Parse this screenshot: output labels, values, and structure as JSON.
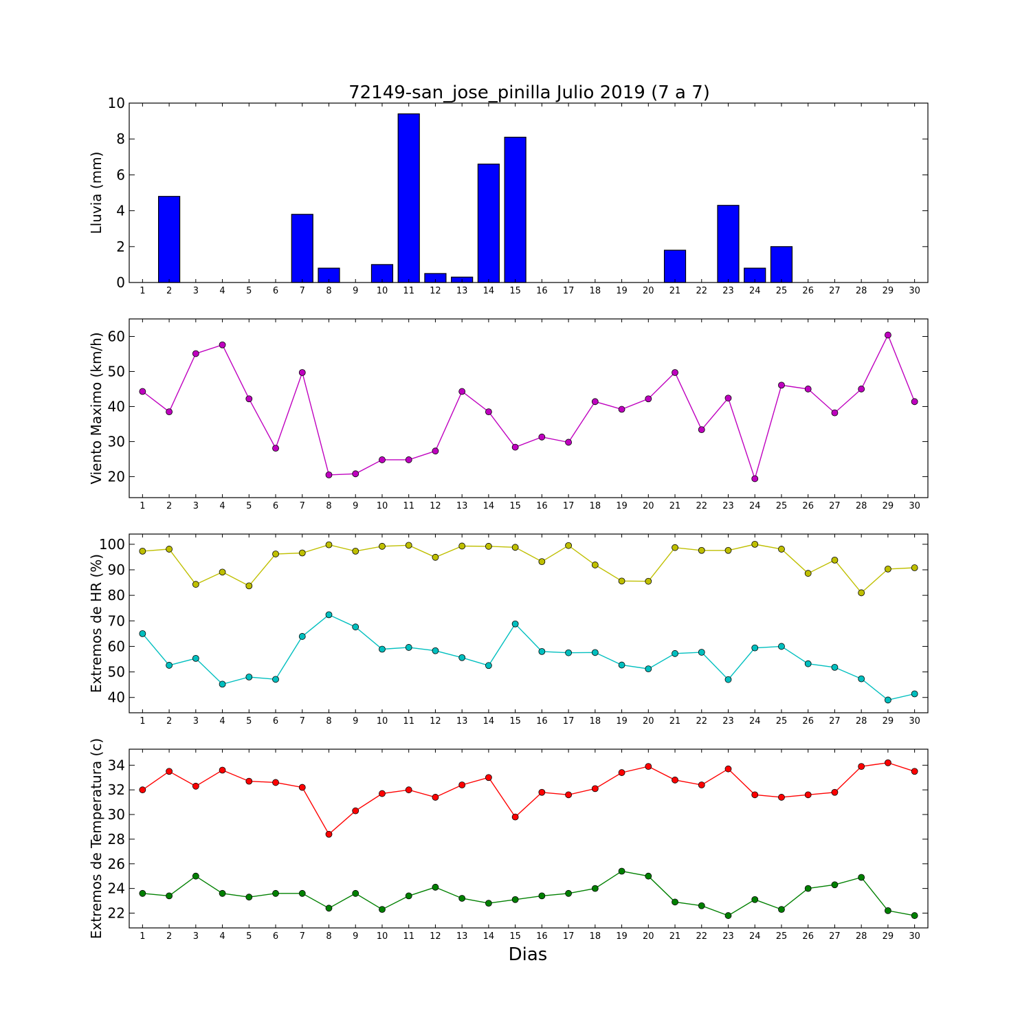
{
  "figure": {
    "title": "72149-san_jose_pinilla Julio 2019  (7 a 7)",
    "xlabel": "Dias"
  },
  "chart_data": [
    {
      "id": "lluvia",
      "type": "bar",
      "ylabel": "Lluvia (mm)",
      "categories": [
        "1",
        "2",
        "3",
        "4",
        "5",
        "6",
        "7",
        "8",
        "9",
        "10",
        "11",
        "12",
        "13",
        "14",
        "15",
        "16",
        "17",
        "18",
        "19",
        "20",
        "21",
        "22",
        "23",
        "24",
        "25",
        "26",
        "27",
        "28",
        "29",
        "30"
      ],
      "values": [
        0,
        4.8,
        0,
        0,
        0,
        0,
        3.8,
        0.8,
        0,
        1.0,
        9.4,
        0.5,
        0.3,
        6.6,
        8.1,
        0,
        0,
        0,
        0,
        0,
        1.8,
        0,
        4.3,
        0.8,
        2.0,
        0,
        0,
        0,
        0,
        0
      ],
      "ylim": [
        0,
        10
      ],
      "yticks": [
        0,
        2,
        4,
        6,
        8,
        10
      ],
      "color": "#0000ff",
      "grid": false
    },
    {
      "id": "viento",
      "type": "line",
      "ylabel": "Viento Maximo (km/h)",
      "categories": [
        "1",
        "2",
        "3",
        "4",
        "5",
        "6",
        "7",
        "8",
        "9",
        "10",
        "11",
        "12",
        "13",
        "14",
        "15",
        "16",
        "17",
        "18",
        "19",
        "20",
        "21",
        "22",
        "23",
        "24",
        "25",
        "26",
        "27",
        "28",
        "29",
        "30"
      ],
      "series": [
        {
          "color": "#bf00bf",
          "values": [
            44.3,
            38.5,
            55.1,
            57.6,
            42.2,
            28.1,
            49.7,
            20.5,
            20.8,
            24.8,
            24.8,
            27.3,
            44.3,
            38.5,
            28.4,
            31.3,
            29.8,
            41.4,
            39.2,
            42.2,
            49.7,
            33.4,
            42.4,
            19.4,
            46.1,
            45.0,
            38.2,
            45.0,
            60.4,
            41.4
          ]
        }
      ],
      "ylim": [
        14,
        65
      ],
      "yticks": [
        20,
        30,
        40,
        50,
        60
      ],
      "grid": false
    },
    {
      "id": "hr",
      "type": "line",
      "ylabel": "Extremos de HR (%)",
      "categories": [
        "1",
        "2",
        "3",
        "4",
        "5",
        "6",
        "7",
        "8",
        "9",
        "10",
        "11",
        "12",
        "13",
        "14",
        "15",
        "16",
        "17",
        "18",
        "19",
        "20",
        "21",
        "22",
        "23",
        "24",
        "25",
        "26",
        "27",
        "28",
        "29",
        "30"
      ],
      "series": [
        {
          "color": "#bfbf00",
          "values": [
            97.3,
            98.1,
            84.3,
            89.1,
            83.7,
            96.2,
            96.6,
            99.8,
            97.3,
            99.2,
            99.6,
            94.9,
            99.3,
            99.2,
            98.8,
            93.2,
            99.5,
            91.9,
            85.6,
            85.5,
            98.7,
            97.6,
            97.6,
            100.0,
            98.1,
            88.6,
            93.8,
            81.0,
            90.3,
            90.8
          ]
        },
        {
          "color": "#00bfbf",
          "values": [
            65.0,
            52.6,
            55.3,
            45.2,
            48.0,
            47.1,
            63.9,
            72.4,
            67.6,
            58.9,
            59.6,
            58.3,
            55.6,
            52.5,
            68.8,
            58.0,
            57.5,
            57.6,
            52.7,
            51.2,
            57.2,
            57.7,
            47.0,
            59.4,
            60.0,
            53.2,
            51.8,
            47.3,
            39.0,
            41.4
          ]
        }
      ],
      "ylim": [
        34,
        104
      ],
      "yticks": [
        40,
        50,
        60,
        70,
        80,
        90,
        100
      ],
      "grid": false
    },
    {
      "id": "temperatura",
      "type": "line",
      "ylabel": "Extremos de Temperatura (c)",
      "categories": [
        "1",
        "2",
        "3",
        "4",
        "5",
        "6",
        "7",
        "8",
        "9",
        "10",
        "11",
        "12",
        "13",
        "14",
        "15",
        "16",
        "17",
        "18",
        "19",
        "20",
        "21",
        "22",
        "23",
        "24",
        "25",
        "26",
        "27",
        "28",
        "29",
        "30"
      ],
      "series": [
        {
          "color": "#ff0000",
          "values": [
            32.0,
            33.5,
            32.3,
            33.6,
            32.7,
            32.6,
            32.2,
            28.4,
            30.3,
            31.7,
            32.0,
            31.4,
            32.4,
            33.0,
            29.8,
            31.8,
            31.6,
            32.1,
            33.4,
            33.9,
            32.8,
            32.4,
            33.7,
            31.6,
            31.4,
            31.6,
            31.8,
            33.9,
            34.2,
            33.5
          ]
        },
        {
          "color": "#008000",
          "values": [
            23.6,
            23.4,
            25.0,
            23.6,
            23.3,
            23.6,
            23.6,
            22.4,
            23.6,
            22.3,
            23.4,
            24.1,
            23.2,
            22.8,
            23.1,
            23.4,
            23.6,
            24.0,
            25.4,
            25.0,
            22.9,
            22.6,
            21.8,
            23.1,
            22.3,
            24.0,
            24.3,
            24.9,
            22.2,
            21.8
          ]
        }
      ],
      "ylim": [
        20.8,
        35.3
      ],
      "yticks": [
        22,
        24,
        26,
        28,
        30,
        32,
        34
      ],
      "grid": false
    }
  ]
}
